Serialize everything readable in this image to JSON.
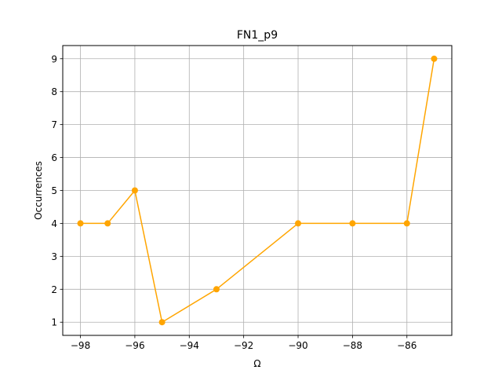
{
  "chart_data": {
    "type": "line",
    "title": "FN1_p9",
    "xlabel": "Ω",
    "ylabel": "Occurrences",
    "xlim": [
      -98.65,
      -84.35
    ],
    "ylim": [
      0.6,
      9.4
    ],
    "xticks": [
      -98,
      -96,
      -94,
      -92,
      -90,
      -88,
      -86
    ],
    "xtick_labels": [
      "−98",
      "−96",
      "−94",
      "−92",
      "−90",
      "−88",
      "−86"
    ],
    "yticks": [
      1,
      2,
      3,
      4,
      5,
      6,
      7,
      8,
      9
    ],
    "ytick_labels": [
      "1",
      "2",
      "3",
      "4",
      "5",
      "6",
      "7",
      "8",
      "9"
    ],
    "grid": true,
    "series": [
      {
        "color": "#ffa500",
        "marker": "circle",
        "x": [
          -98,
          -97,
          -96,
          -95,
          -93,
          -90,
          -88,
          -86,
          -85
        ],
        "y": [
          4,
          4,
          5,
          1,
          2,
          4,
          4,
          4,
          9
        ]
      }
    ]
  }
}
